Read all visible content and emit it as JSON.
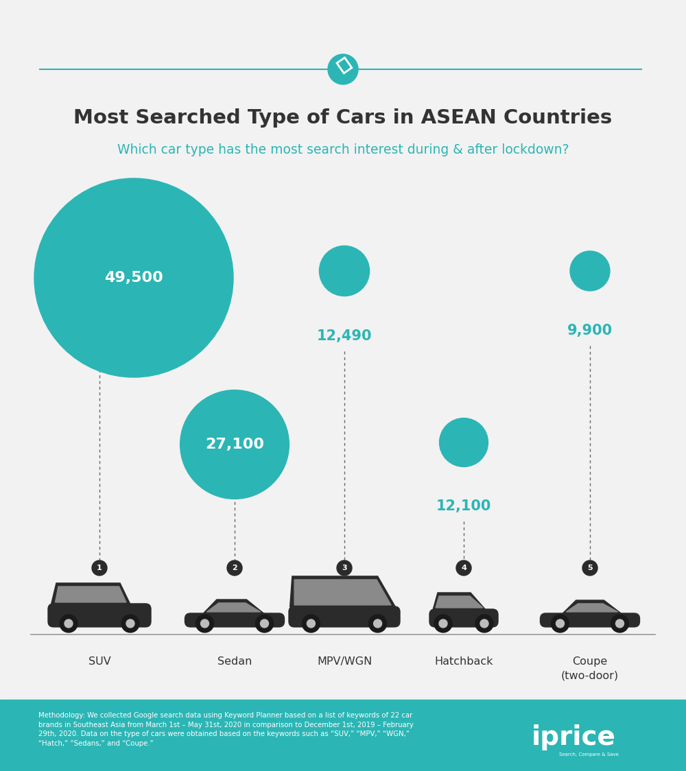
{
  "chart_data": {
    "type": "bubble",
    "title": "Most Searched Type of Cars in ASEAN Countries",
    "subtitle": "Which car type has the most search interest during & after lockdown?",
    "categories": [
      "SUV",
      "Sedan",
      "MPV/WGN",
      "Hatchback",
      "Coupe\n(two-door)"
    ],
    "values": [
      49500,
      27100,
      12490,
      12100,
      9900
    ],
    "value_labels": [
      "49,500",
      "27,100",
      "12,490",
      "12,100",
      "9,900"
    ],
    "ranks": [
      1,
      2,
      3,
      4,
      5
    ],
    "color": "#2cb5b5",
    "data_labels": true,
    "tick_labels": false,
    "note": "Methodology: We collected Google search data using Keyword Planner based on a list of keywords of 22 car brands in Southeast Asia from March 1st – May 31st, 2020 in comparison to December 1st, 2019 – February 29th, 2020. Data on the type of cars were obtained based on the keywords such as “SUV,” “MPV,” “WGN,” “Hatch,” “Sedans,” and “Coupe.”",
    "brand": "iprice",
    "tagline": "Search, Compare & Save"
  }
}
